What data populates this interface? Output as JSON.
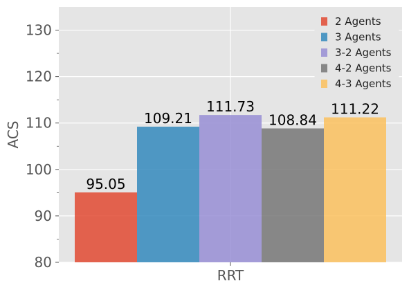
{
  "chart_data": {
    "type": "bar",
    "categories": [
      "RRT"
    ],
    "series": [
      {
        "name": "2 Agents",
        "values": [
          95.05
        ],
        "color": "#e24a33",
        "label": "95.05"
      },
      {
        "name": "3 Agents",
        "values": [
          109.21
        ],
        "color": "#348abd",
        "label": "109.21"
      },
      {
        "name": "3-2 Agents",
        "values": [
          111.73
        ],
        "color": "#988ed5",
        "label": "111.73"
      },
      {
        "name": "4-2 Agents",
        "values": [
          108.84
        ],
        "color": "#777777",
        "label": "108.84"
      },
      {
        "name": "4-3 Agents",
        "values": [
          111.22
        ],
        "color": "#fbc15e",
        "label": "111.22"
      }
    ],
    "ylabel": "ACS",
    "xlabel": "",
    "ylim": [
      80,
      135
    ],
    "yticks": [
      80,
      90,
      100,
      110,
      120,
      130
    ],
    "grid": true,
    "legend": "top-right",
    "background": "#e5e5e5"
  }
}
